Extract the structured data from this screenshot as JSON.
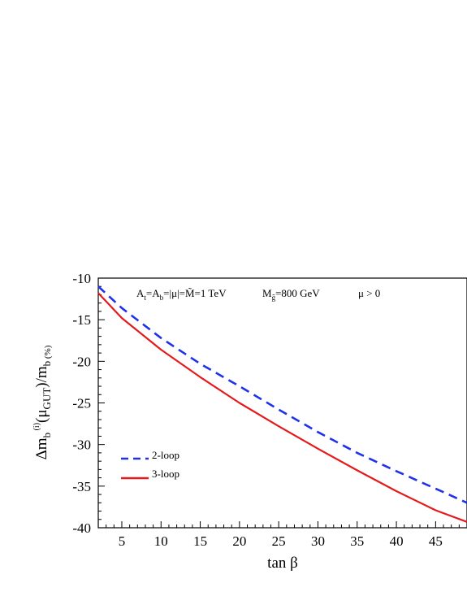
{
  "chart_data": {
    "type": "line",
    "xlabel": "tan β",
    "ylabel": "Δm_b^(i)(μ_GUT)/m_b (%)",
    "xlim": [
      2,
      49
    ],
    "ylim": [
      -40,
      -10
    ],
    "xticks": [
      5,
      10,
      15,
      20,
      25,
      30,
      35,
      40,
      45
    ],
    "yticks": [
      -10,
      -15,
      -20,
      -25,
      -30,
      -35,
      -40
    ],
    "annotations": {
      "params": "A_t=A_b=|μ|=M̃=1 TeV",
      "gluino": "M_g̃=800 GeV",
      "sign": "μ > 0"
    },
    "legend_position": "lower-left",
    "series": [
      {
        "name": "2-loop",
        "style": "dashed",
        "color": "#1f32e8",
        "x": [
          2,
          5,
          10,
          15,
          20,
          25,
          30,
          35,
          40,
          45,
          49
        ],
        "y": [
          -11.0,
          -13.6,
          -17.2,
          -20.3,
          -23.0,
          -25.8,
          -28.5,
          -31.0,
          -33.2,
          -35.3,
          -37.0
        ]
      },
      {
        "name": "3-loop",
        "style": "solid",
        "color": "#e41a1c",
        "x": [
          2,
          5,
          10,
          15,
          20,
          25,
          30,
          35,
          40,
          45,
          49
        ],
        "y": [
          -11.8,
          -14.8,
          -18.6,
          -21.9,
          -25.0,
          -27.8,
          -30.5,
          -33.1,
          -35.6,
          -37.9,
          -39.3
        ]
      }
    ]
  }
}
